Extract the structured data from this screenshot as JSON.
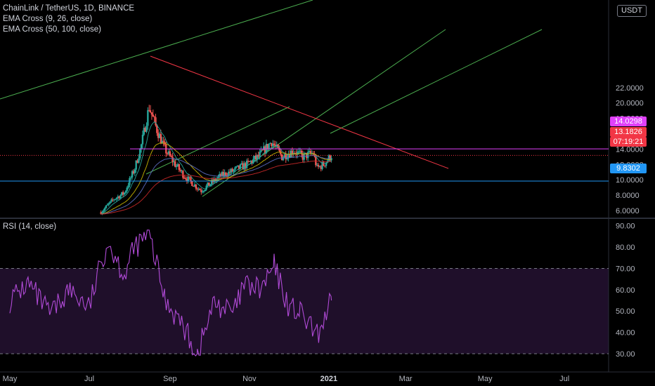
{
  "main_legend": {
    "symbol": "ChainLink / TetherUS, 1D, BINANCE",
    "ema1": "EMA Cross (9, 26, close)",
    "ema2": "EMA Cross (50, 100, close)"
  },
  "currency_button": "USDT",
  "rsi_legend": "RSI (14, close)",
  "tags": {
    "magenta": "14.0298",
    "last": "13.1826",
    "countdown": "07:19:21",
    "blue": "9.8302"
  },
  "colors": {
    "background": "#000000",
    "magenta": "#e040fb",
    "red": "#f23645",
    "blue": "#2196f3",
    "green": "#4caf50",
    "up_candle": "#26a69a",
    "down_candle": "#ef5350",
    "rsi_line": "#b04ad6",
    "rsi_band": "#1f0f2a"
  },
  "chart_data": [
    {
      "type": "candlestick",
      "title": "ChainLink / TetherUS, 1D, BINANCE",
      "x_tick_labels": [
        "May",
        "Jul",
        "Sep",
        "Nov",
        "2021",
        "Mar",
        "May",
        "Jul"
      ],
      "y_tick_labels": [
        "6.0000",
        "8.0000",
        "10.0000",
        "12.0000",
        "14.0000",
        "16.0000",
        "18.0000",
        "20.0000",
        "22.0000"
      ],
      "ylim": [
        5.8,
        24.5
      ],
      "horizontal_levels": [
        {
          "name": "resistance",
          "value": 14.0298,
          "color": "magenta"
        },
        {
          "name": "last_price",
          "value": 13.1826,
          "color": "red"
        },
        {
          "name": "support",
          "value": 9.8302,
          "color": "blue"
        }
      ],
      "close_series": [
        {
          "date": "2020-07-10",
          "value": 5.8
        },
        {
          "date": "2020-07-20",
          "value": 7.5
        },
        {
          "date": "2020-07-28",
          "value": 8.3
        },
        {
          "date": "2020-08-05",
          "value": 11.5
        },
        {
          "date": "2020-08-10",
          "value": 14.5
        },
        {
          "date": "2020-08-16",
          "value": 19.5
        },
        {
          "date": "2020-08-22",
          "value": 16.5
        },
        {
          "date": "2020-08-28",
          "value": 14.0
        },
        {
          "date": "2020-09-05",
          "value": 12.0
        },
        {
          "date": "2020-09-12",
          "value": 10.5
        },
        {
          "date": "2020-09-20",
          "value": 9.3
        },
        {
          "date": "2020-09-25",
          "value": 8.6
        },
        {
          "date": "2020-10-02",
          "value": 9.5
        },
        {
          "date": "2020-10-10",
          "value": 10.5
        },
        {
          "date": "2020-10-20",
          "value": 11.2
        },
        {
          "date": "2020-10-30",
          "value": 12.0
        },
        {
          "date": "2020-11-08",
          "value": 13.0
        },
        {
          "date": "2020-11-18",
          "value": 15.0
        },
        {
          "date": "2020-11-26",
          "value": 13.0
        },
        {
          "date": "2020-12-05",
          "value": 13.8
        },
        {
          "date": "2020-12-12",
          "value": 13.0
        },
        {
          "date": "2020-12-20",
          "value": 13.5
        },
        {
          "date": "2020-12-23",
          "value": 11.5
        },
        {
          "date": "2020-12-28",
          "value": 12.0
        },
        {
          "date": "2021-01-03",
          "value": 13.18
        }
      ]
    },
    {
      "type": "line",
      "title": "RSI (14, close)",
      "y_tick_labels": [
        "30.00",
        "40.00",
        "50.00",
        "60.00",
        "70.00",
        "80.00",
        "90.00"
      ],
      "ylim": [
        26,
        91
      ],
      "bands": [
        30,
        70
      ],
      "series": [
        {
          "name": "RSI (14, close)",
          "points": [
            {
              "date": "2020-05-01",
              "value": 55
            },
            {
              "date": "2020-05-15",
              "value": 63
            },
            {
              "date": "2020-06-01",
              "value": 48
            },
            {
              "date": "2020-06-15",
              "value": 60
            },
            {
              "date": "2020-07-01",
              "value": 52
            },
            {
              "date": "2020-07-15",
              "value": 83
            },
            {
              "date": "2020-07-28",
              "value": 67
            },
            {
              "date": "2020-08-05",
              "value": 80
            },
            {
              "date": "2020-08-16",
              "value": 86
            },
            {
              "date": "2020-08-28",
              "value": 56
            },
            {
              "date": "2020-09-10",
              "value": 44
            },
            {
              "date": "2020-09-22",
              "value": 30
            },
            {
              "date": "2020-10-05",
              "value": 54
            },
            {
              "date": "2020-10-20",
              "value": 49
            },
            {
              "date": "2020-10-28",
              "value": 62
            },
            {
              "date": "2020-11-10",
              "value": 60
            },
            {
              "date": "2020-11-20",
              "value": 71
            },
            {
              "date": "2020-12-01",
              "value": 52
            },
            {
              "date": "2020-12-10",
              "value": 49
            },
            {
              "date": "2020-12-23",
              "value": 38
            },
            {
              "date": "2021-01-03",
              "value": 55
            }
          ]
        }
      ]
    }
  ]
}
